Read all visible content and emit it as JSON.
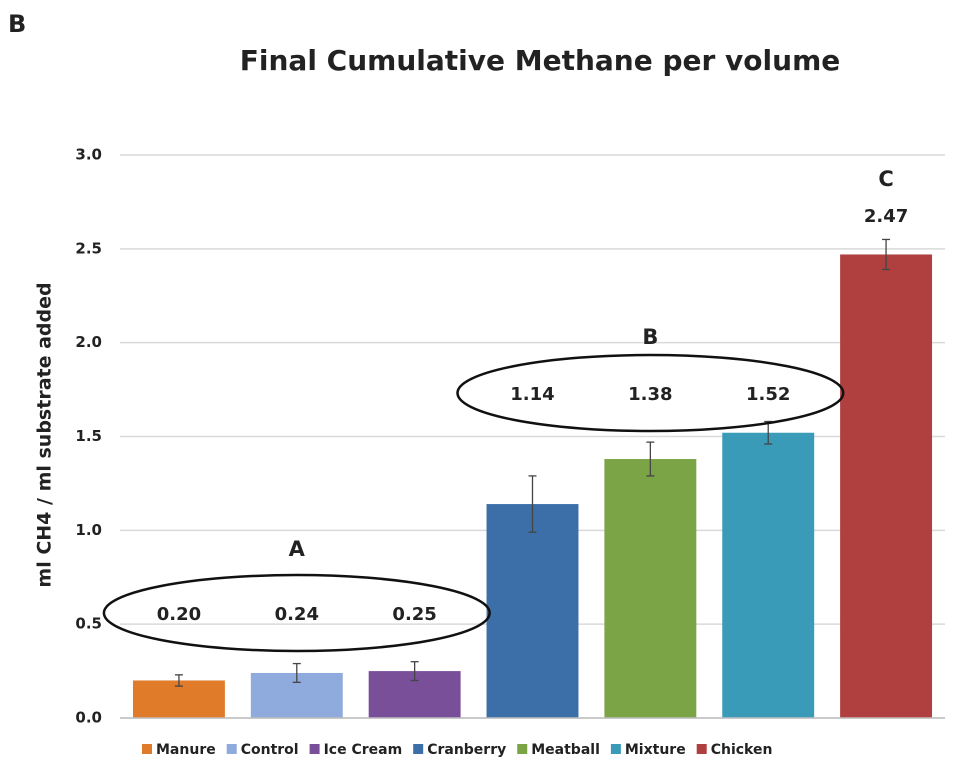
{
  "panel_label": "B",
  "chart_data": {
    "type": "bar",
    "title": "Final Cumulative Methane per volume",
    "ylabel": "ml CH4 / ml substrate added",
    "categories": [
      "Manure",
      "Control",
      "Ice Cream",
      "Cranberry",
      "Meatball",
      "Mixture",
      "Chicken"
    ],
    "values": [
      0.2,
      0.24,
      0.25,
      1.14,
      1.38,
      1.52,
      2.47
    ],
    "value_labels": [
      "0.20",
      "0.24",
      "0.25",
      "1.14",
      "1.38",
      "1.52",
      "2.47"
    ],
    "errors": [
      0.03,
      0.05,
      0.05,
      0.15,
      0.09,
      0.06,
      0.08
    ],
    "colors": [
      "#e07b2a",
      "#8faadc",
      "#7a4f9a",
      "#3c6fa8",
      "#7ba447",
      "#3a9bb8",
      "#b04040"
    ],
    "annotations": [
      "A",
      "B",
      "C"
    ],
    "ylim": [
      0,
      3
    ],
    "yticks": [
      {
        "value": 0,
        "label": "0.0"
      },
      {
        "value": 0.5,
        "label": "0.5"
      },
      {
        "value": 1,
        "label": "1.0"
      },
      {
        "value": 1.5,
        "label": "1.5"
      },
      {
        "value": 2,
        "label": "2.0"
      },
      {
        "value": 2.5,
        "label": "2.5"
      },
      {
        "value": 3,
        "label": "3.0"
      }
    ],
    "grid": true,
    "legend": "bottom"
  }
}
